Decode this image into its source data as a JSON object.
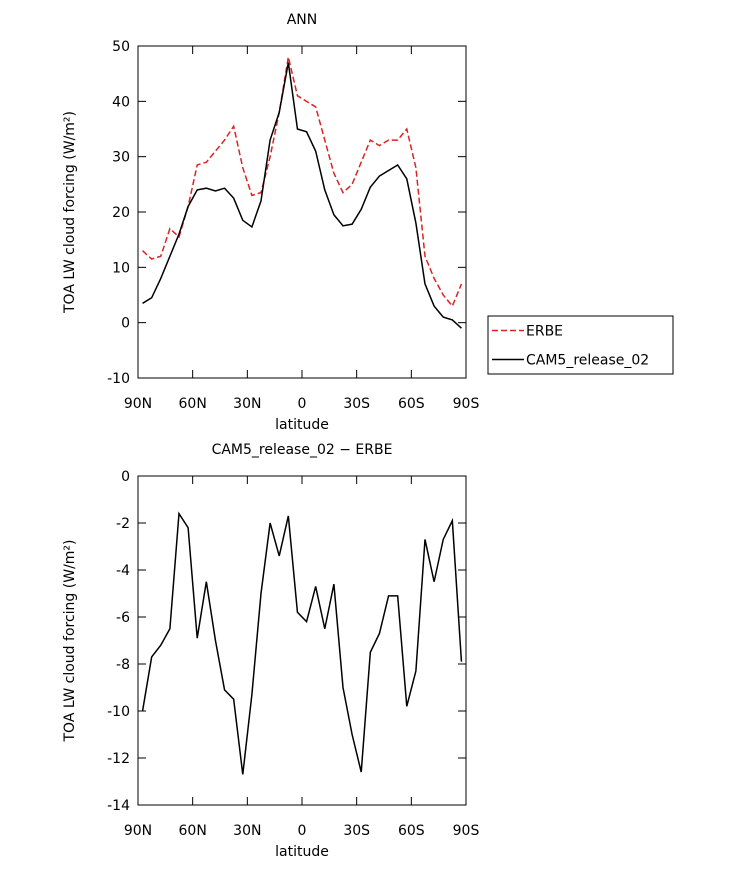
{
  "chart_data": [
    {
      "type": "line",
      "title": "ANN",
      "xlabel": "latitude",
      "ylabel": "TOA LW cloud forcing (W/m²)",
      "x": [
        87.5,
        82.5,
        77.5,
        72.5,
        67.5,
        62.5,
        57.5,
        52.5,
        47.5,
        42.5,
        37.5,
        32.5,
        27.5,
        22.5,
        17.5,
        12.5,
        7.5,
        2.5,
        -2.5,
        -7.5,
        -12.5,
        -17.5,
        -22.5,
        -27.5,
        -32.5,
        -37.5,
        -42.5,
        -47.5,
        -52.5,
        -57.5,
        -62.5,
        -67.5,
        -72.5,
        -77.5,
        -82.5,
        -87.5
      ],
      "series": [
        {
          "name": "ERBE",
          "color": "#dd2222",
          "dash": "dashed",
          "values": [
            13,
            11.5,
            12,
            17,
            15.5,
            21,
            28.5,
            29,
            31,
            33,
            35.5,
            28,
            23,
            23.5,
            30,
            38,
            48,
            41,
            40,
            39,
            33,
            27,
            23.5,
            25,
            29,
            33,
            32,
            33,
            33,
            35,
            28,
            12,
            8,
            5,
            3,
            7
          ]
        },
        {
          "name": "CAM5_release_02",
          "color": "#000000",
          "dash": "solid",
          "values": [
            3.5,
            4.5,
            8,
            12,
            16,
            21,
            24,
            24.3,
            23.8,
            24.3,
            22.5,
            18.5,
            17.3,
            22,
            33,
            38,
            47,
            35,
            34.5,
            31,
            24,
            19.5,
            17.5,
            17.8,
            20.5,
            24.5,
            26.5,
            27.5,
            28.5,
            26,
            18,
            7,
            3,
            1,
            0.5,
            -1
          ]
        }
      ],
      "xlim": [
        90,
        -90
      ],
      "xticks": [
        {
          "value": 90,
          "label": "90N"
        },
        {
          "value": 60,
          "label": "60N"
        },
        {
          "value": 30,
          "label": "30N"
        },
        0,
        {
          "value": -30,
          "label": "30S"
        },
        {
          "value": -60,
          "label": "60S"
        },
        {
          "value": -90,
          "label": "90S"
        }
      ],
      "ylim": [
        -10,
        50
      ],
      "yticks": [
        -10,
        0,
        10,
        20,
        30,
        40,
        50
      ],
      "legend": "right"
    },
    {
      "type": "line",
      "title": "CAM5_release_02 − ERBE",
      "xlabel": "latitude",
      "ylabel": "TOA LW cloud forcing (W/m²)",
      "x": [
        87.5,
        82.5,
        77.5,
        72.5,
        67.5,
        62.5,
        57.5,
        52.5,
        47.5,
        42.5,
        37.5,
        32.5,
        27.5,
        22.5,
        17.5,
        12.5,
        7.5,
        2.5,
        -2.5,
        -7.5,
        -12.5,
        -17.5,
        -22.5,
        -27.5,
        -32.5,
        -37.5,
        -42.5,
        -47.5,
        -52.5,
        -57.5,
        -62.5,
        -67.5,
        -72.5,
        -77.5,
        -82.5,
        -87.5
      ],
      "series": [
        {
          "color": "#000000",
          "dash": "solid",
          "values": [
            -10,
            -7.7,
            -7.2,
            -6.5,
            -1.6,
            -2.2,
            -6.9,
            -4.5,
            -7,
            -9.1,
            -9.5,
            -12.7,
            -9.3,
            -5,
            -2,
            -3.4,
            -1.7,
            -5.8,
            -6.2,
            -4.7,
            -6.5,
            -4.6,
            -9,
            -11,
            -12.6,
            -7.5,
            -6.7,
            -5.1,
            -5.1,
            -9.8,
            -8.3,
            -2.7,
            -4.5,
            -2.7,
            -1.9,
            -7.9
          ]
        }
      ],
      "xlim": [
        90,
        -90
      ],
      "xticks": [
        {
          "value": 90,
          "label": "90N"
        },
        {
          "value": 60,
          "label": "60N"
        },
        {
          "value": 30,
          "label": "30N"
        },
        0,
        {
          "value": -30,
          "label": "30S"
        },
        {
          "value": -60,
          "label": "60S"
        },
        {
          "value": -90,
          "label": "90S"
        }
      ],
      "ylim": [
        -14,
        0
      ],
      "yticks": [
        -14,
        -12,
        -10,
        -8,
        -6,
        -4,
        -2,
        0
      ]
    }
  ]
}
